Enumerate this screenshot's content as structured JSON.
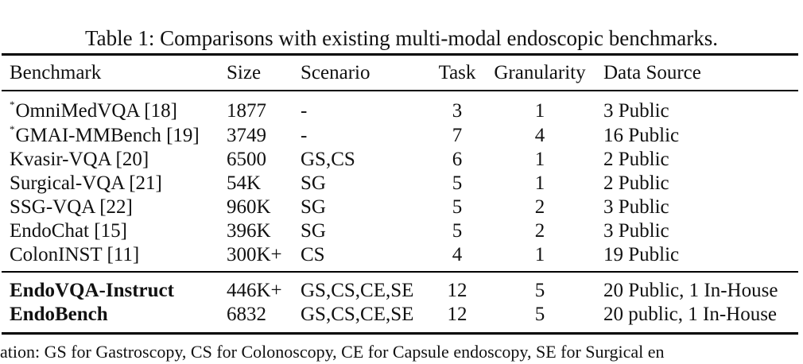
{
  "caption": "Table 1: Comparisons with existing multi-modal endoscopic benchmarks.",
  "columns": {
    "benchmark": "Benchmark",
    "size": "Size",
    "scenario": "Scenario",
    "task": "Task",
    "granularity": "Granularity",
    "source": "Data Source"
  },
  "rows": [
    {
      "marker": "*",
      "benchmark": "OmniMedVQA [18]",
      "size": "1877",
      "scenario": "-",
      "task": "3",
      "granularity": "1",
      "source": "3 Public"
    },
    {
      "marker": "*",
      "benchmark": "GMAI-MMBench [19]",
      "size": "3749",
      "scenario": "-",
      "task": "7",
      "granularity": "4",
      "source": "16 Public"
    },
    {
      "marker": "",
      "benchmark": "Kvasir-VQA [20]",
      "size": "6500",
      "scenario": "GS,CS",
      "task": "6",
      "granularity": "1",
      "source": "2 Public"
    },
    {
      "marker": "",
      "benchmark": "Surgical-VQA [21]",
      "size": "54K",
      "scenario": "SG",
      "task": "5",
      "granularity": "1",
      "source": "2 Public"
    },
    {
      "marker": "",
      "benchmark": "SSG-VQA [22]",
      "size": "960K",
      "scenario": "SG",
      "task": "5",
      "granularity": "2",
      "source": "3 Public"
    },
    {
      "marker": "",
      "benchmark": "EndoChat [15]",
      "size": "396K",
      "scenario": "SG",
      "task": "5",
      "granularity": "2",
      "source": "3 Public"
    },
    {
      "marker": "",
      "benchmark": "ColonINST [11]",
      "size": "300K+",
      "scenario": "CS",
      "task": "4",
      "granularity": "1",
      "source": "19 Public"
    },
    {
      "marker": "",
      "benchmark": "EndoVQA-Instruct",
      "size": "446K+",
      "scenario": "GS,CS,CE,SE",
      "task": "12",
      "granularity": "5",
      "source": "20 Public, 1 In-House"
    },
    {
      "marker": "",
      "benchmark": "EndoBench",
      "size": "6832",
      "scenario": "GS,CS,CE,SE",
      "task": "12",
      "granularity": "5",
      "source": "20 public, 1 In-House"
    }
  ],
  "footnote": "ation: GS for Gastroscopy, CS for Colonoscopy, CE for Capsule endoscopy, SE for Surgical en"
}
